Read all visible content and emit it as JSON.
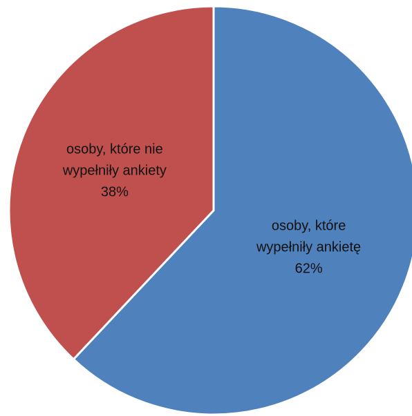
{
  "chart_data": {
    "type": "pie",
    "title": "",
    "start_angle_deg": 0,
    "direction": "clockwise",
    "legend": "none",
    "slices": [
      {
        "label_lines": [
          "osoby, które",
          "wypełniły ankietę"
        ],
        "value": 62,
        "value_label": "62%",
        "color": "#4F81BD"
      },
      {
        "label_lines": [
          "osoby, które nie",
          "wypełniły ankiety"
        ],
        "value": 38,
        "value_label": "38%",
        "color": "#C0504D"
      }
    ]
  }
}
